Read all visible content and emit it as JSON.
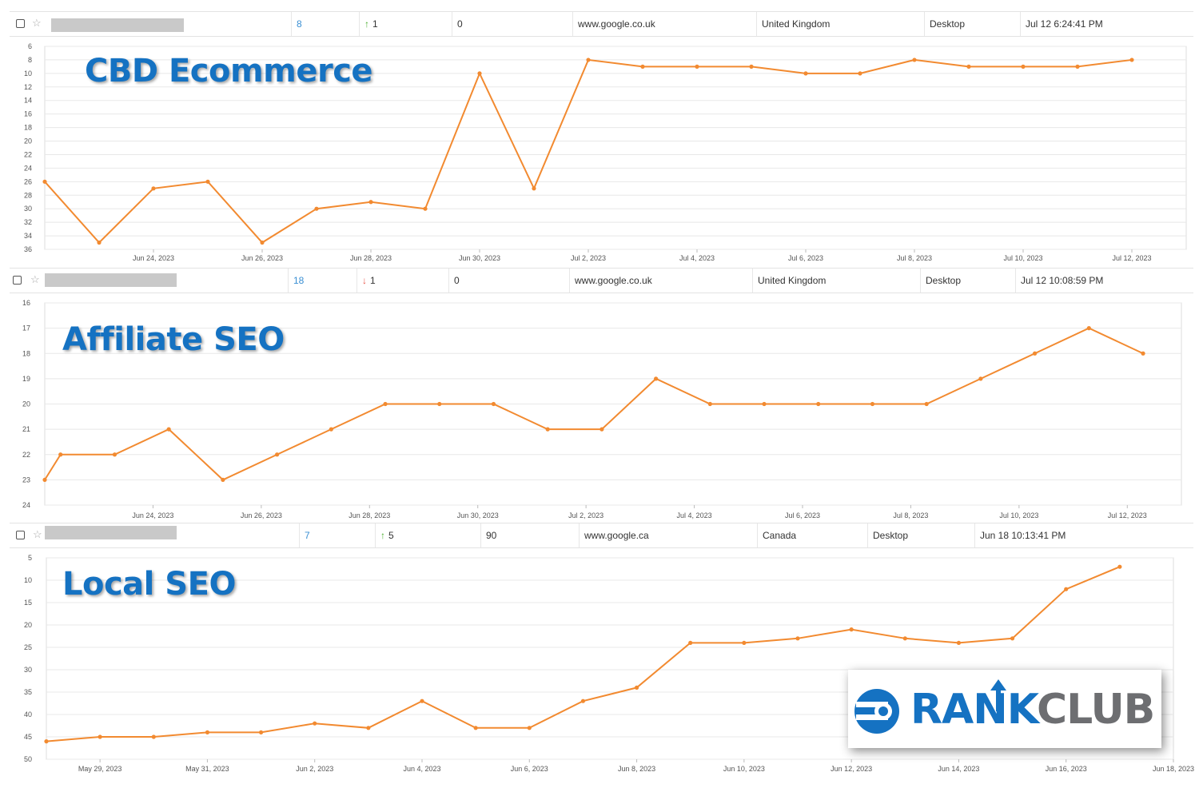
{
  "rows": [
    {
      "position": "8",
      "change_dir": "up",
      "change": "1",
      "volume": "0",
      "engine": "www.google.co.uk",
      "location": "United Kingdom",
      "device": "Desktop",
      "updated": "Jul 12 6:24:41 PM"
    },
    {
      "position": "18",
      "change_dir": "down",
      "change": "1",
      "volume": "0",
      "engine": "www.google.co.uk",
      "location": "United Kingdom",
      "device": "Desktop",
      "updated": "Jul 12 10:08:59 PM"
    },
    {
      "position": "7",
      "change_dir": "up",
      "change": "5",
      "volume": "90",
      "engine": "www.google.ca",
      "location": "Canada",
      "device": "Desktop",
      "updated": "Jun 18 10:13:41 PM"
    }
  ],
  "labels": {
    "cbd": "CBD Ecommerce",
    "affiliate": "Affiliate SEO",
    "local": "Local SEO",
    "logo_rank": "RANK",
    "logo_club": "CLUB"
  },
  "colors": {
    "line": "#f28a30",
    "title": "#1572c2",
    "grid": "#e8e8e8",
    "axis_text": "#555555",
    "arrow_up": "#4cae2e",
    "arrow_down": "#e8564a",
    "position_link": "#3a8fd3"
  },
  "icons": [
    "checkbox-icon",
    "star-icon",
    "arrow-up-icon",
    "arrow-down-icon",
    "rankclub-logo-icon"
  ],
  "chart_data": [
    {
      "type": "line",
      "title": "CBD Ecommerce",
      "y_inverted": true,
      "ylim": [
        6,
        36
      ],
      "yticks": [
        6,
        8,
        10,
        12,
        14,
        16,
        18,
        20,
        22,
        24,
        26,
        28,
        30,
        32,
        34,
        36
      ],
      "xticks": [
        "Jun 24, 2023",
        "Jun 26, 2023",
        "Jun 28, 2023",
        "Jun 30, 2023",
        "Jul 2, 2023",
        "Jul 4, 2023",
        "Jul 6, 2023",
        "Jul 8, 2023",
        "Jul 10, 2023",
        "Jul 12, 2023"
      ],
      "x": [
        "2023-06-22",
        "2023-06-23",
        "2023-06-24",
        "2023-06-25",
        "2023-06-26",
        "2023-06-27",
        "2023-06-28",
        "2023-06-29",
        "2023-06-30",
        "2023-07-01",
        "2023-07-02",
        "2023-07-03",
        "2023-07-04",
        "2023-07-05",
        "2023-07-06",
        "2023-07-07",
        "2023-07-08",
        "2023-07-09",
        "2023-07-10",
        "2023-07-11",
        "2023-07-12",
        "2023-07-13"
      ],
      "xmin": "2023-06-22",
      "xmax": "2023-07-13",
      "points": [
        [
          "2023-06-22",
          26
        ],
        [
          "2023-06-23",
          35
        ],
        [
          "2023-06-24",
          27
        ],
        [
          "2023-06-25",
          26
        ],
        [
          "2023-06-26",
          35
        ],
        [
          "2023-06-27",
          30
        ],
        [
          "2023-06-28",
          29
        ],
        [
          "2023-06-29",
          30
        ],
        [
          "2023-06-30",
          10
        ],
        [
          "2023-07-01",
          27
        ],
        [
          "2023-07-02",
          8
        ],
        [
          "2023-07-03",
          9
        ],
        [
          "2023-07-04",
          9
        ],
        [
          "2023-07-05",
          9
        ],
        [
          "2023-07-06",
          10
        ],
        [
          "2023-07-07",
          10
        ],
        [
          "2023-07-08",
          8
        ],
        [
          "2023-07-09",
          9
        ],
        [
          "2023-07-10",
          9
        ],
        [
          "2023-07-11",
          9
        ],
        [
          "2023-07-12",
          8
        ]
      ],
      "grid": true
    },
    {
      "type": "line",
      "title": "Affiliate SEO",
      "y_inverted": true,
      "ylim": [
        16,
        24
      ],
      "yticks": [
        16,
        17,
        18,
        19,
        20,
        21,
        22,
        23,
        24
      ],
      "xticks": [
        "Jun 24, 2023",
        "Jun 26, 2023",
        "Jun 28, 2023",
        "Jun 30, 2023",
        "Jul 2, 2023",
        "Jul 4, 2023",
        "Jul 6, 2023",
        "Jul 8, 2023",
        "Jul 10, 2023",
        "Jul 12, 2023"
      ],
      "xmin": "2023-06-22",
      "xmax": "2023-07-13",
      "points": [
        [
          "2023-06-22",
          23
        ],
        [
          "2023-06-22T07:00",
          22
        ],
        [
          "2023-06-23T07:00",
          22
        ],
        [
          "2023-06-24T07:00",
          21
        ],
        [
          "2023-06-25T07:00",
          23
        ],
        [
          "2023-06-26T07:00",
          22
        ],
        [
          "2023-06-27T07:00",
          21
        ],
        [
          "2023-06-28T07:00",
          20
        ],
        [
          "2023-06-29T07:00",
          20
        ],
        [
          "2023-06-30T07:00",
          20
        ],
        [
          "2023-07-01T07:00",
          21
        ],
        [
          "2023-07-02T07:00",
          21
        ],
        [
          "2023-07-03T07:00",
          19
        ],
        [
          "2023-07-04T07:00",
          20
        ],
        [
          "2023-07-05T07:00",
          20
        ],
        [
          "2023-07-06T07:00",
          20
        ],
        [
          "2023-07-07T07:00",
          20
        ],
        [
          "2023-07-08T07:00",
          20
        ],
        [
          "2023-07-09T07:00",
          19
        ],
        [
          "2023-07-10T07:00",
          18
        ],
        [
          "2023-07-11T07:00",
          17
        ],
        [
          "2023-07-12T07:00",
          18
        ]
      ],
      "grid": true
    },
    {
      "type": "line",
      "title": "Local SEO",
      "y_inverted": true,
      "ylim": [
        5,
        50
      ],
      "yticks": [
        5,
        10,
        15,
        20,
        25,
        30,
        35,
        40,
        45,
        50
      ],
      "xticks": [
        "May 29, 2023",
        "May 31, 2023",
        "Jun 2, 2023",
        "Jun 4, 2023",
        "Jun 6, 2023",
        "Jun 8, 2023",
        "Jun 10, 2023",
        "Jun 12, 2023",
        "Jun 14, 2023",
        "Jun 16, 2023",
        "Jun 18, 2023"
      ],
      "xmin": "2023-05-28",
      "xmax": "2023-06-18",
      "points": [
        [
          "2023-05-28",
          46
        ],
        [
          "2023-05-29",
          45
        ],
        [
          "2023-05-30",
          45
        ],
        [
          "2023-05-31",
          44
        ],
        [
          "2023-06-01",
          44
        ],
        [
          "2023-06-02",
          42
        ],
        [
          "2023-06-03",
          43
        ],
        [
          "2023-06-04",
          37
        ],
        [
          "2023-06-05",
          43
        ],
        [
          "2023-06-06",
          43
        ],
        [
          "2023-06-07",
          37
        ],
        [
          "2023-06-08",
          34
        ],
        [
          "2023-06-09",
          24
        ],
        [
          "2023-06-10",
          24
        ],
        [
          "2023-06-11",
          23
        ],
        [
          "2023-06-12",
          21
        ],
        [
          "2023-06-13",
          23
        ],
        [
          "2023-06-14",
          24
        ],
        [
          "2023-06-15",
          23
        ],
        [
          "2023-06-16",
          12
        ],
        [
          "2023-06-17",
          7
        ]
      ],
      "grid": true
    }
  ]
}
